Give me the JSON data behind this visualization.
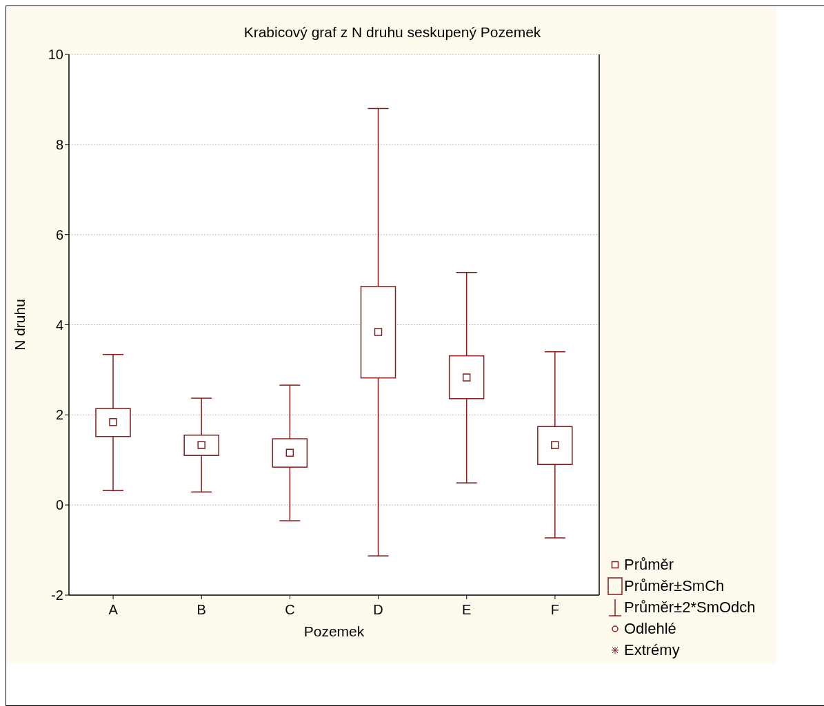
{
  "chart_data": {
    "type": "box",
    "title": "Krabicový graf z N druhu seskupený Pozemek",
    "xlabel": "Pozemek",
    "ylabel": "N druhu",
    "categories": [
      "A",
      "B",
      "C",
      "D",
      "E",
      "F"
    ],
    "color": "#8b1a1a",
    "boxes": [
      {
        "low": 0.32,
        "q1": 1.52,
        "median": 1.84,
        "q3": 2.14,
        "high": 3.34
      },
      {
        "low": 0.29,
        "q1": 1.1,
        "median": 1.33,
        "q3": 1.55,
        "high": 2.37
      },
      {
        "low": -0.35,
        "q1": 0.84,
        "median": 1.16,
        "q3": 1.47,
        "high": 2.66
      },
      {
        "low": -1.13,
        "q1": 2.82,
        "median": 3.84,
        "q3": 4.85,
        "high": 8.8
      },
      {
        "low": 0.49,
        "q1": 2.36,
        "median": 2.83,
        "q3": 3.31,
        "high": 5.16
      },
      {
        "low": -0.73,
        "q1": 0.9,
        "median": 1.33,
        "q3": 1.74,
        "high": 3.4
      }
    ],
    "ylim": [
      -2,
      10
    ],
    "yticks": [
      -2,
      0,
      2,
      4,
      6,
      8,
      10
    ],
    "grid": "y",
    "annotations": [
      "Průměr",
      "Průměr±SmCh",
      "Průměr±2*SmOdch",
      "Odlehlé",
      "Extrémy"
    ]
  }
}
